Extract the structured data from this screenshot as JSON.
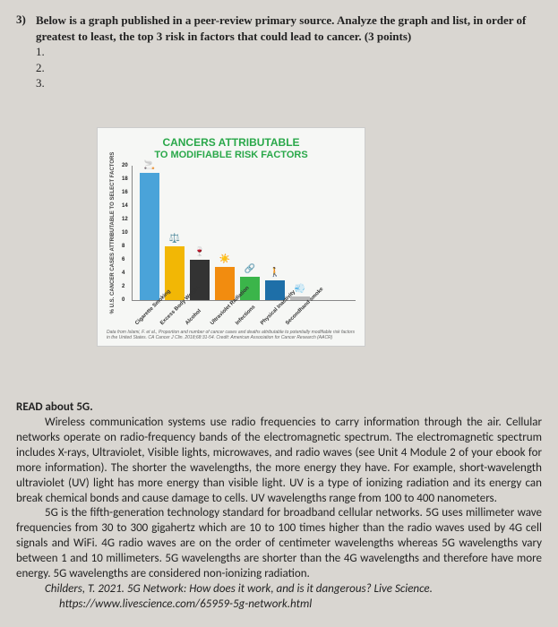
{
  "question": {
    "number": "3)",
    "prompt": "Below is a graph published in a peer-review primary source. Analyze the graph and list, in order of greatest to least, the top 3 risk in factors that could lead to cancer. (3 points)",
    "items": [
      "1.",
      "2.",
      "3."
    ]
  },
  "chart": {
    "type": "bar",
    "title_line1": "CANCERS ATTRIBUTABLE",
    "title_line2": "TO MODIFIABLE RISK FACTORS",
    "title_color": "#2aa84a",
    "ylabel": "% U.S. CANCER CASES ATTRIBUTABLE TO SELECT FACTORS",
    "ylim": [
      0,
      20
    ],
    "yticks": [
      0,
      2,
      4,
      6,
      8,
      10,
      12,
      14,
      16,
      18,
      20
    ],
    "categories": [
      "Cigarette Smoking",
      "Excess Body Weight",
      "Alcohol",
      "Ultraviolet Radiation",
      "Infections",
      "Physical Inactivity",
      "Secondhand smoke"
    ],
    "values": [
      19,
      8,
      6,
      5,
      3.5,
      3,
      0.5
    ],
    "bar_colors": [
      "#4aa3d9",
      "#f2b705",
      "#333333",
      "#f28c0f",
      "#3bb54a",
      "#1e6fa8",
      "#b8b8b8"
    ],
    "icons": [
      "🚬",
      "⚖️",
      "🍷",
      "☀️",
      "🔗",
      "🚶",
      "💨"
    ],
    "background": "#f6f7f5",
    "source": "Data from Islami, F. et al., Proportion and number of cancer cases and deaths attributable to potentially modifiable risk factors in the United States. CA Cancer J Clin. 2018;68:31-54. Credit: American Association for Cancer Research (AACR)"
  },
  "reading": {
    "heading": "READ about 5G.",
    "p1": "Wireless communication systems use radio frequencies to carry information through the air. Cellular networks operate on radio-frequency bands of the electromagnetic spectrum. The electromagnetic spectrum includes X-rays, Ultraviolet, Visible lights, microwaves, and radio waves (see Unit 4 Module 2 of your ebook for more information). The shorter the wavelengths, the more energy they have. For example, short-wavelength ultraviolet (UV) light has more energy than visible light. UV is a type of ionizing radiation and its energy can break chemical bonds and cause damage to cells. UV wavelengths range from 100 to 400 nanometers.",
    "p2": "5G is the fifth-generation technology standard for broadband cellular networks. 5G uses millimeter wave frequencies from 30 to 300 gigahertz which are 10 to 100 times higher than the radio waves used by 4G cell signals and WiFi. 4G radio waves are on the order of centimeter wavelengths whereas 5G wavelengths vary between 1 and 10 millimeters. 5G wavelengths are shorter than the 4G wavelengths and therefore have more energy. 5G wavelengths are considered non-ionizing radiation.",
    "citation": "Childers, T. 2021. 5G Network: How does it work, and is it dangerous? Live Science.",
    "url": "https://www.livescience.com/65959-5g-network.html"
  }
}
